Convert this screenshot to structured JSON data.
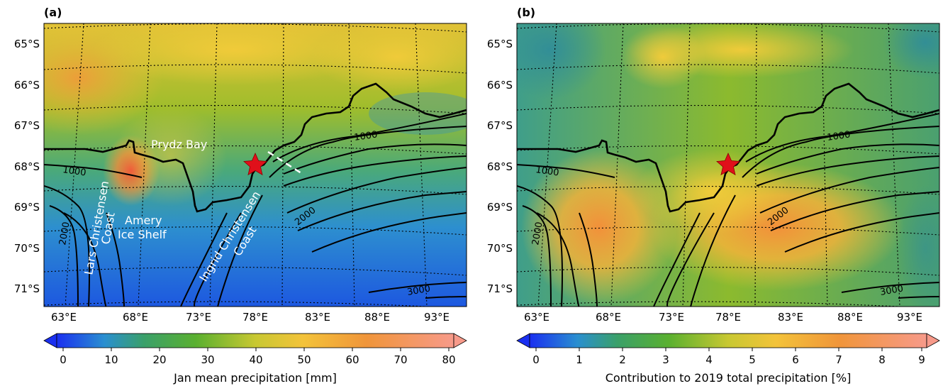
{
  "panels": [
    {
      "label": "(a)",
      "lat_labels": [
        "65°S",
        "66°S",
        "67°S",
        "68°S",
        "69°S",
        "70°S",
        "71°S"
      ],
      "lon_labels": [
        "63°E",
        "68°E",
        "73°E",
        "78°E",
        "83°E",
        "88°E",
        "93°E"
      ],
      "contours": [
        "1000",
        "1000",
        "2000",
        "2000",
        "3000"
      ],
      "annotations": [
        "Prydz Bay",
        "Lars Christensen",
        "Coast",
        "Amery",
        "Ice Shelf",
        "Ingrid Christensen",
        "Coast"
      ],
      "colorbar": {
        "ticks": [
          "0",
          "10",
          "20",
          "30",
          "40",
          "50",
          "60",
          "70",
          "80"
        ],
        "label": "Jan mean precipitation [mm]"
      }
    },
    {
      "label": "(b)",
      "lat_labels": [
        "65°S",
        "66°S",
        "67°S",
        "68°S",
        "69°S",
        "70°S",
        "71°S"
      ],
      "lon_labels": [
        "63°E",
        "68°E",
        "73°E",
        "78°E",
        "83°E",
        "88°E",
        "93°E"
      ],
      "contours": [
        "1000",
        "1000",
        "2000",
        "2000",
        "3000"
      ],
      "colorbar": {
        "ticks": [
          "0",
          "1",
          "2",
          "3",
          "4",
          "5",
          "6",
          "7",
          "8",
          "9"
        ],
        "label": "Contribution to 2019 total precipitation [%]"
      }
    }
  ],
  "colors": {
    "colormap": [
      "#1f3fe0",
      "#2a8fd0",
      "#3aa06a",
      "#6fb52a",
      "#c8c832",
      "#f3c33a",
      "#f09545",
      "#f28a7a"
    ],
    "star": "#e0101a",
    "contour": "#000000",
    "coastline": "#000000"
  },
  "icons": [
    "station-star-icon"
  ]
}
